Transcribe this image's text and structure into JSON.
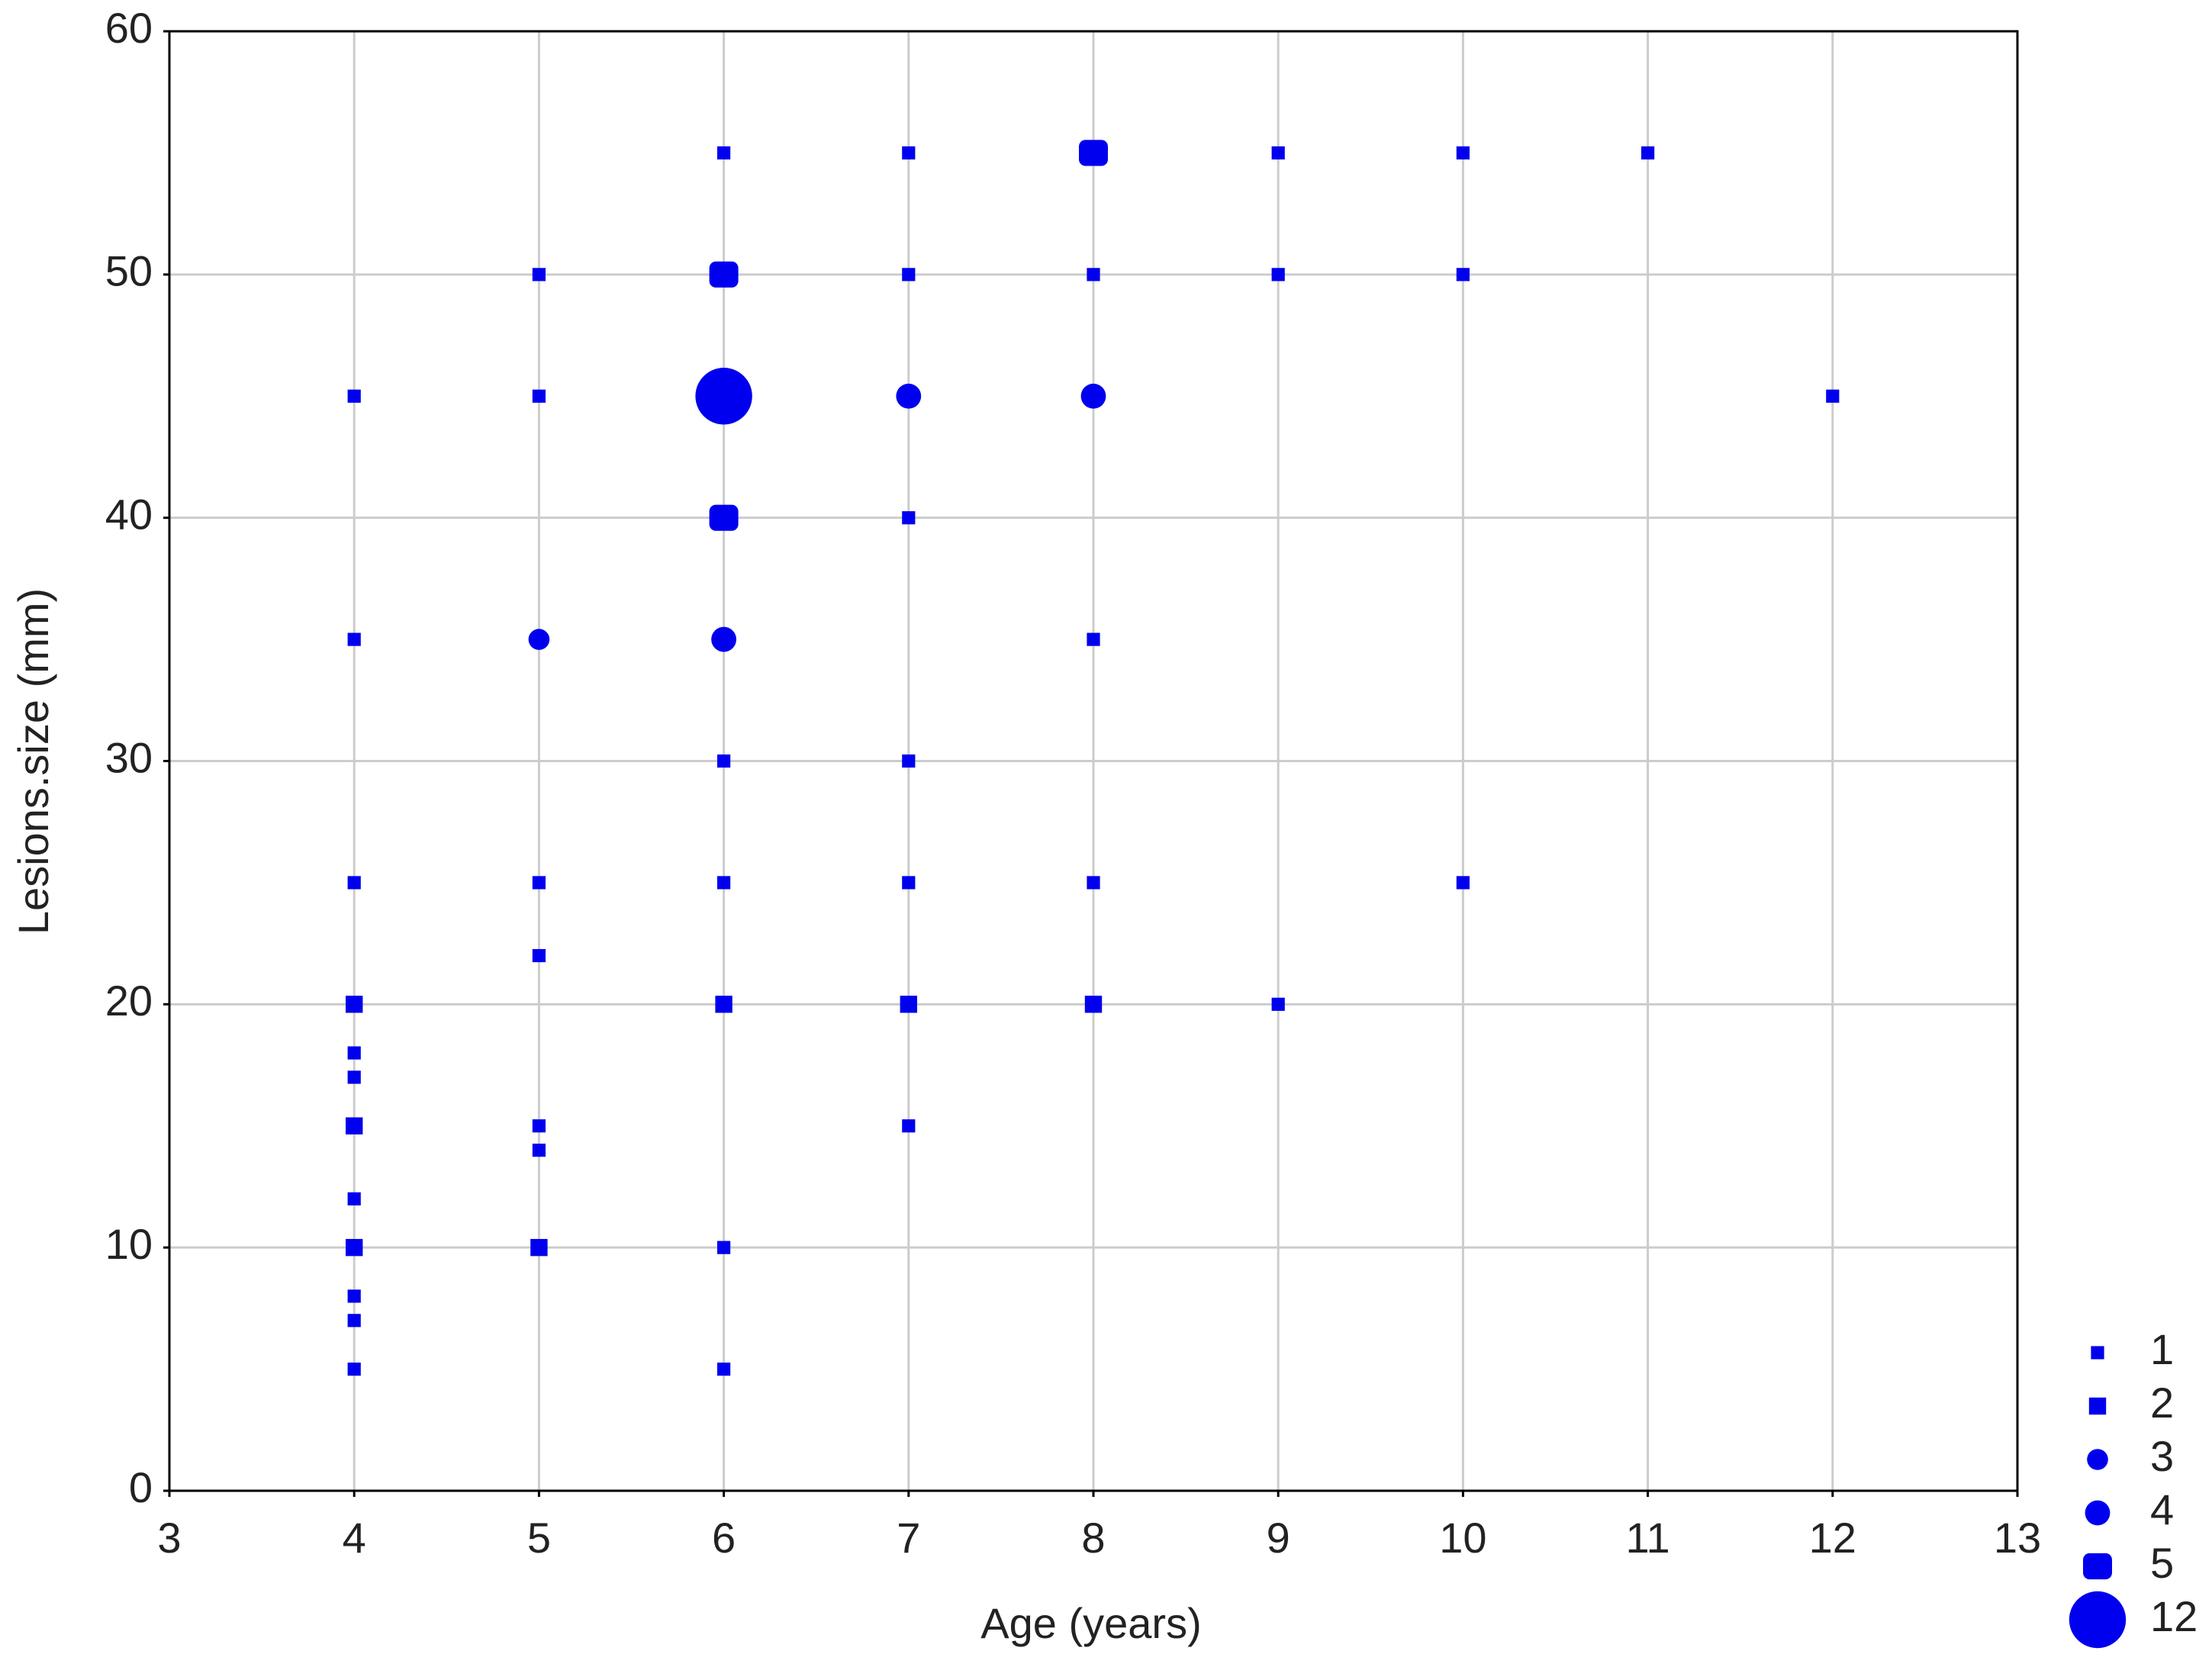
{
  "chart_data": {
    "type": "scatter",
    "x_label": "Age (years)",
    "y_label": "Lesions.size (mm)",
    "color": "#0000ee",
    "x": [
      4,
      4,
      4,
      4,
      4,
      4,
      4,
      4,
      4,
      4,
      4,
      4,
      5,
      5,
      5,
      5,
      5,
      5,
      5,
      5,
      6,
      6,
      6,
      6,
      6,
      6,
      6,
      6,
      6,
      6,
      7,
      7,
      7,
      7,
      7,
      7,
      7,
      7,
      8,
      8,
      8,
      8,
      8,
      8,
      9,
      9,
      9,
      10,
      10,
      10,
      11,
      12
    ],
    "values": [
      45,
      35,
      25,
      20,
      18,
      17,
      15,
      12,
      10,
      8,
      7,
      5,
      50,
      45,
      35,
      25,
      22,
      15,
      14,
      10,
      55,
      50,
      45,
      40,
      35,
      30,
      25,
      20,
      10,
      5,
      55,
      50,
      45,
      40,
      30,
      25,
      20,
      15,
      55,
      50,
      45,
      35,
      25,
      20,
      55,
      50,
      20,
      55,
      50,
      25,
      55,
      45
    ],
    "sizes": [
      1,
      1,
      1,
      2,
      1,
      1,
      2,
      1,
      2,
      1,
      1,
      1,
      1,
      1,
      3,
      1,
      1,
      1,
      1,
      2,
      1,
      5,
      12,
      5,
      4,
      1,
      1,
      2,
      1,
      1,
      1,
      1,
      4,
      1,
      1,
      1,
      2,
      1,
      5,
      1,
      4,
      1,
      1,
      2,
      1,
      1,
      1,
      1,
      1,
      1,
      1,
      1
    ],
    "size_legend": [
      1,
      2,
      3,
      4,
      5,
      12
    ],
    "xlim": [
      3,
      13
    ],
    "xticks": [
      3,
      4,
      5,
      6,
      7,
      8,
      9,
      10,
      11,
      12,
      13
    ],
    "ylim": [
      0,
      60
    ],
    "yticks": [
      0,
      10,
      20,
      30,
      40,
      50,
      60
    ],
    "grid": true
  }
}
